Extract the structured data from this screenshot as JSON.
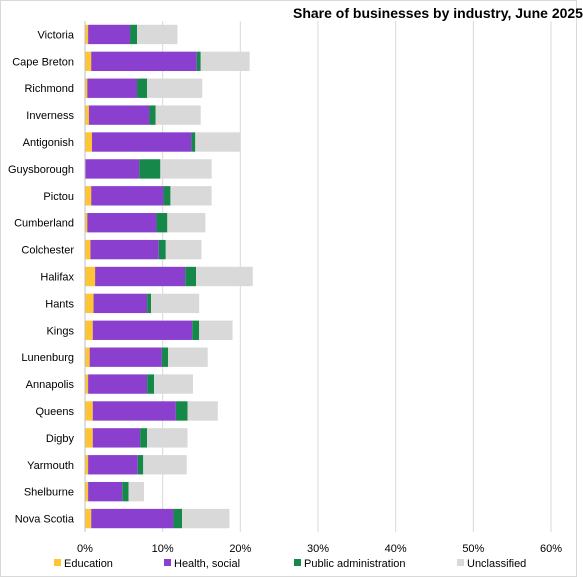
{
  "chart_data": {
    "type": "bar",
    "orientation": "horizontal",
    "stacked": true,
    "title": "Share of businesses  by industry, June 2025",
    "categories": [
      "Victoria",
      "Cape Breton",
      "Richmond",
      "Inverness",
      "Antigonish",
      "Guysborough",
      "Pictou",
      "Cumberland",
      "Colchester",
      "Halifax",
      "Hants",
      "Kings",
      "Lunenburg",
      "Annapolis",
      "Queens",
      "Digby",
      "Yarmouth",
      "Shelburne",
      "Nova Scotia"
    ],
    "series": [
      {
        "name": "Education",
        "color": "#FFC533",
        "values": [
          0.4,
          0.8,
          0.3,
          0.5,
          0.9,
          0.0,
          0.8,
          0.3,
          0.7,
          1.3,
          1.1,
          1.0,
          0.6,
          0.4,
          1.0,
          1.0,
          0.4,
          0.4,
          0.8
        ]
      },
      {
        "name": "Health, social",
        "color": "#8A3FCF",
        "values": [
          5.4,
          13.6,
          6.4,
          7.8,
          12.8,
          7.0,
          9.3,
          8.9,
          8.8,
          11.6,
          6.9,
          12.8,
          9.3,
          7.6,
          10.7,
          6.1,
          6.4,
          4.4,
          10.6
        ]
      },
      {
        "name": "Public administration",
        "color": "#16884A",
        "values": [
          0.9,
          0.5,
          1.3,
          0.8,
          0.5,
          2.7,
          0.9,
          1.4,
          0.9,
          1.4,
          0.5,
          0.9,
          0.8,
          0.9,
          1.5,
          0.9,
          0.7,
          0.8,
          1.1
        ]
      },
      {
        "name": "Unclassified",
        "color": "#D9D9D9",
        "values": [
          5.2,
          6.3,
          7.1,
          5.8,
          5.8,
          6.6,
          5.3,
          4.9,
          4.6,
          7.3,
          6.2,
          4.3,
          5.1,
          5.0,
          3.9,
          5.2,
          5.6,
          2.0,
          6.1
        ]
      }
    ],
    "xlim": [
      0,
      60
    ],
    "x_ticks": [
      "0%",
      "10%",
      "20%",
      "30%",
      "40%",
      "50%",
      "60%"
    ],
    "grid": true,
    "legend_position": "bottom"
  }
}
